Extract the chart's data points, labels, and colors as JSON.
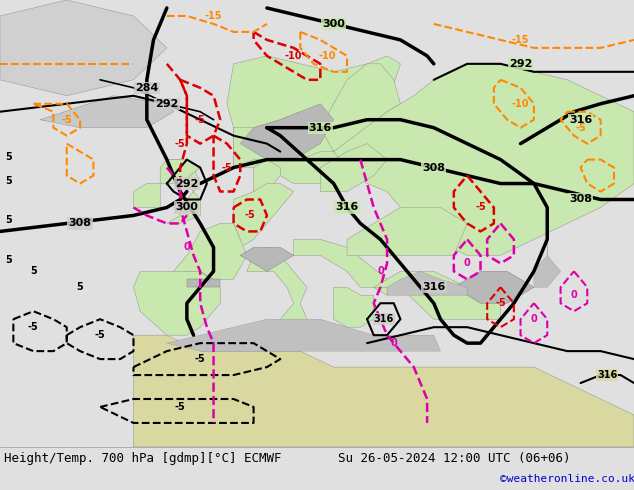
{
  "title_left": "Height/Temp. 700 hPa [gdmp][°C] ECMWF",
  "title_right": "Su 26-05-2024 12:00 UTC (06+06)",
  "credit": "©weatheronline.co.uk",
  "bg_color": "#e0e0e0",
  "land_green": "#c8e8b0",
  "land_grey": "#b8b8b8",
  "sea_color": "#cccccc",
  "bottom_bar_color": "#f0f0f0",
  "black": "#000000",
  "red": "#dd0000",
  "orange": "#ff8800",
  "magenta": "#dd00aa",
  "credit_color": "#0000cc",
  "title_fontsize": 9,
  "credit_fontsize": 8,
  "label_fs": 7
}
